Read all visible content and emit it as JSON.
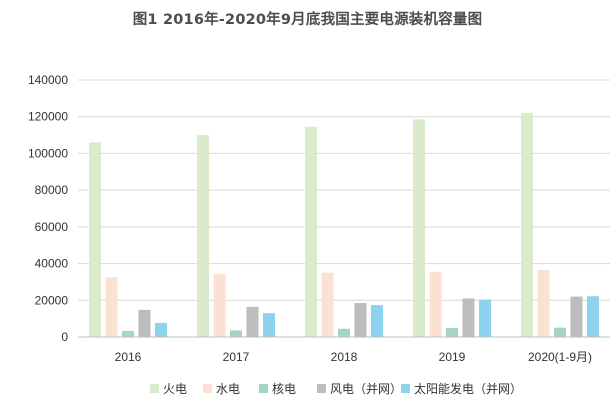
{
  "chart_data": {
    "type": "bar",
    "title": "图1 2016年-2020年9月底我国主要电源装机容量图",
    "categories": [
      "2016",
      "2017",
      "2018",
      "2019",
      "2020(1-9月)"
    ],
    "series": [
      {
        "name": "火电",
        "color": "#daeacb",
        "values": [
          106000,
          110000,
          114500,
          118500,
          122000
        ]
      },
      {
        "name": "水电",
        "color": "#fbe1d4",
        "values": [
          32500,
          34500,
          35000,
          35500,
          36500
        ]
      },
      {
        "name": "核电",
        "color": "#a4d4c2",
        "values": [
          3300,
          3600,
          4500,
          4900,
          5100
        ]
      },
      {
        "name": "风电（并网）",
        "color": "#bdbdbd",
        "values": [
          14800,
          16400,
          18500,
          21000,
          22000
        ]
      },
      {
        "name": "太阳能发电（并网）",
        "color": "#8ed3ee",
        "values": [
          7700,
          13000,
          17400,
          20400,
          22200
        ]
      }
    ],
    "y_ticks": [
      0,
      20000,
      40000,
      60000,
      80000,
      100000,
      120000,
      140000
    ],
    "ylim": [
      0,
      140000
    ],
    "grid": true,
    "legend_position": "bottom"
  }
}
